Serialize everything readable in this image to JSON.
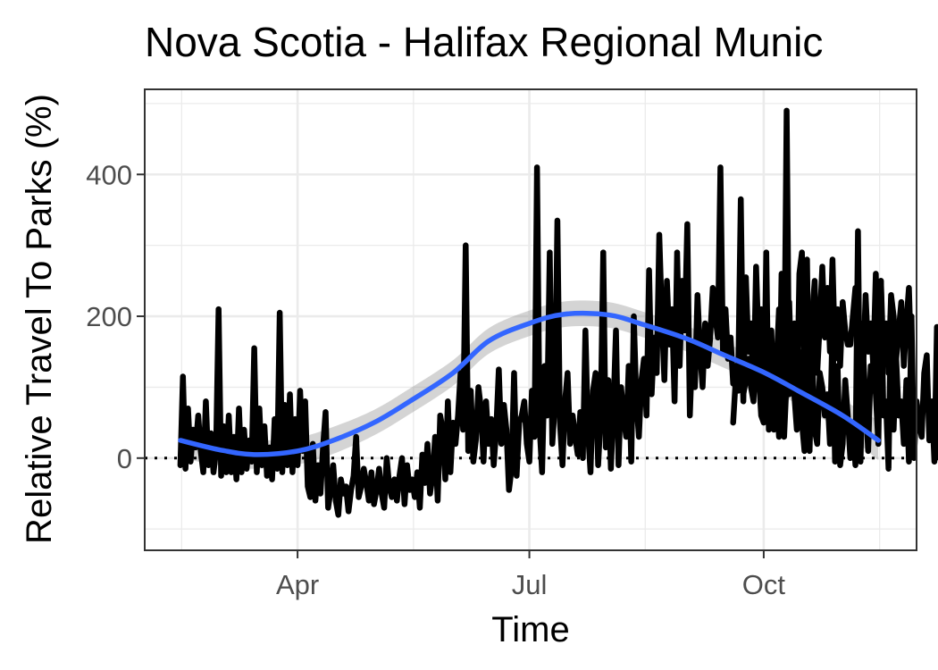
{
  "chart_data": {
    "type": "line",
    "title": "Nova Scotia - Halifax Regional Munic",
    "xlabel": "Time",
    "ylabel": "Relative Travel To Parks (%)",
    "x_ticks": [
      {
        "label": "Apr",
        "date": "2020-04-01"
      },
      {
        "label": "Jul",
        "date": "2020-07-01"
      },
      {
        "label": "Oct",
        "date": "2020-10-01"
      }
    ],
    "y_ticks": [
      0,
      200,
      400
    ],
    "xlim": [
      "2020-02-01",
      "2020-11-30"
    ],
    "ylim": [
      -130,
      520
    ],
    "reference_line": {
      "y": 0,
      "style": "dotted"
    },
    "grid": true,
    "colors": {
      "series": "#000000",
      "smooth": "#3366ff",
      "ribbon": "#999999",
      "grid": "#ebebeb",
      "border": "#333333"
    },
    "series": [
      {
        "style": "line",
        "segments": [
          {
            "start": "2020-02-15",
            "values": [
              -10,
              115,
              -15,
              70,
              -5,
              40,
              15,
              60,
              10,
              -20,
              80,
              -10,
              35,
              -20,
              10,
              210,
              -25,
              45,
              -20,
              60,
              -20,
              30,
              -30,
              70,
              -20,
              40,
              -15,
              25,
              -5,
              155,
              -20,
              70,
              -10,
              45,
              -25,
              15,
              -30,
              55,
              -15,
              205,
              -20,
              75,
              -10,
              90,
              -20,
              55,
              -10,
              95,
              10,
              80,
              -40,
              -55,
              20,
              -60,
              -10,
              -50,
              15,
              65,
              -70,
              -45,
              -10,
              -60,
              -80,
              -30,
              -50,
              -40,
              -75,
              -45,
              -25,
              30,
              -55,
              -40,
              -15,
              -35,
              -60,
              -20,
              -65,
              -45,
              -15,
              -50,
              -70,
              0,
              -40,
              -55,
              -30,
              -60,
              -25,
              0,
              -65,
              -10,
              -45,
              -30,
              -55,
              -20,
              -70,
              5,
              -35,
              20,
              -50,
              -25,
              30,
              -60,
              60,
              40,
              -30,
              80,
              -20,
              50,
              20,
              60,
              120,
              40,
              300,
              10,
              95,
              -5,
              25,
              100,
              70,
              -5,
              80,
              20,
              55,
              -10,
              40,
              125,
              20,
              75,
              40,
              -45,
              -15,
              120,
              -25,
              50,
              60,
              80,
              20,
              -5,
              95,
              30,
              410,
              45,
              -20,
              130,
              60,
              290,
              20,
              75,
              335,
              50,
              -10,
              80,
              120,
              20,
              60,
              30,
              5,
              65,
              0,
              180,
              40,
              -20,
              95,
              120,
              -10,
              60,
              290,
              15,
              110,
              -15,
              70,
              180,
              -10,
              100,
              60,
              30,
              130,
              -5,
              200,
              80,
              30,
              110,
              140,
              60,
              265,
              90,
              170,
              120,
              315,
              200,
              110,
              250,
              160,
              210,
              80,
              290,
              130,
              250,
              180,
              330,
              60,
              160,
              100,
              230,
              150,
              100,
              190,
              130,
              170,
              240,
              200,
              170,
              410,
              150,
              210,
              140,
              170,
              105,
              130,
              95,
              220,
              80,
              255,
              150,
              190,
              90,
              270,
              160,
              210,
              70,
              160,
              100,
              180,
              40,
              130,
              210,
              65,
              90,
              490,
              90,
              140,
              190,
              60,
              260,
              290,
              120,
              230,
              70,
              200,
              250,
              120,
              190,
              270,
              170,
              240,
              150,
              280,
              140,
              210,
              130,
              220,
              180,
              160,
              160,
              200,
              240,
              140,
              190,
              120,
              230,
              150,
              190,
              130,
              260,
              110,
              250,
              140,
              190,
              120,
              230,
              200,
              140,
              180,
              220,
              130,
              190,
              240,
              120
            ]
          },
          {
            "start": "2020-09-19",
            "values": [
              50,
              110,
              120,
              365,
              90,
              110,
              140,
              100,
              80,
              170,
              120,
              60,
              50,
              290,
              40,
              150,
              120,
              100,
              30,
              260,
              30,
              110,
              220,
              100,
              90,
              40,
              150,
              50,
              10,
              280,
              10,
              150,
              40,
              20,
              120,
              100,
              60,
              90,
              20,
              190,
              -5,
              130,
              -10,
              20,
              110,
              60,
              0,
              50,
              -10,
              320,
              -5,
              150,
              80,
              10,
              130,
              130,
              90,
              20,
              250,
              60,
              80,
              -15,
              225,
              40,
              140,
              60,
              80,
              20,
              110,
              -5,
              200,
              0,
              80,
              50,
              30,
              120,
              145,
              25,
              80,
              -5,
              185,
              0,
              50,
              25,
              10
            ]
          }
        ]
      },
      {
        "style": "smooth",
        "x": [
          "2020-02-15",
          "2020-03-01",
          "2020-03-15",
          "2020-04-01",
          "2020-04-15",
          "2020-05-01",
          "2020-05-15",
          "2020-06-01",
          "2020-06-15",
          "2020-07-01",
          "2020-07-15",
          "2020-08-01",
          "2020-08-15",
          "2020-09-01",
          "2020-09-15",
          "2020-10-01",
          "2020-10-15",
          "2020-11-01",
          "2020-11-15"
        ],
        "y": [
          25,
          12,
          5,
          10,
          25,
          50,
          80,
          120,
          165,
          190,
          203,
          202,
          188,
          168,
          146,
          121,
          94,
          60,
          25
        ],
        "ribbon_halfwidth": [
          25,
          22,
          20,
          19,
          19,
          18,
          18,
          18,
          18,
          18,
          18,
          18,
          18,
          18,
          18,
          18,
          20,
          22,
          28
        ]
      }
    ]
  }
}
